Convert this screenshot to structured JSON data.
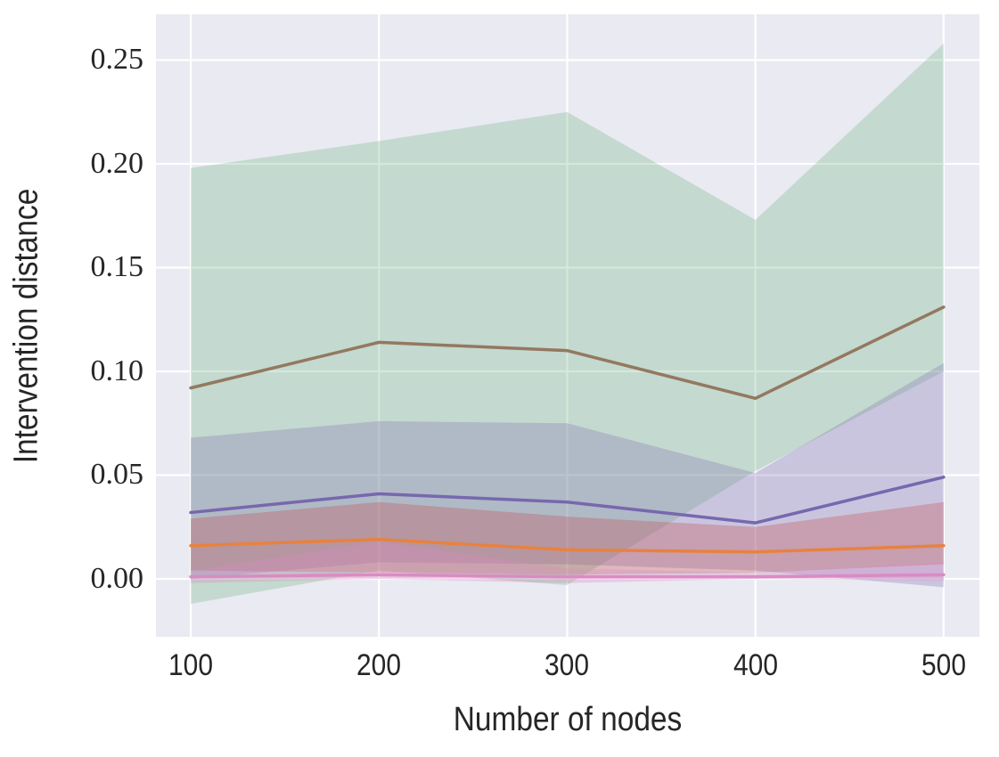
{
  "chart_data": {
    "type": "line",
    "title": "",
    "xlabel": "Number of nodes",
    "ylabel": "Intervention distance",
    "x": [
      100,
      200,
      300,
      400,
      500
    ],
    "xticks": [
      "100",
      "200",
      "300",
      "400",
      "500"
    ],
    "yticks": [
      "0.00",
      "0.05",
      "0.10",
      "0.15",
      "0.20",
      "0.25"
    ],
    "xlim": [
      81.5,
      519.0
    ],
    "ylim": [
      -0.0279,
      0.2721
    ],
    "grid": true,
    "legend": "none",
    "plot_background": "#eaeaf2",
    "gridline_color": "#ffffff",
    "text_color": "#262626",
    "series": [
      {
        "name": "brown-series",
        "line_color": "#937860",
        "band_color": "#55A868",
        "band_alpha": 0.25,
        "values": [
          0.092,
          0.114,
          0.11,
          0.087,
          0.131
        ],
        "band_low": [
          -0.012,
          0.004,
          -0.003,
          0.052,
          0.1
        ],
        "band_high": [
          0.198,
          0.211,
          0.225,
          0.173,
          0.258
        ]
      },
      {
        "name": "purple-series",
        "line_color": "#7668ae",
        "band_color": "#8172B3",
        "band_alpha": 0.3,
        "values": [
          0.032,
          0.041,
          0.037,
          0.027,
          0.049
        ],
        "band_low": [
          0.0,
          0.008,
          0.007,
          0.004,
          -0.004
        ],
        "band_high": [
          0.068,
          0.076,
          0.075,
          0.051,
          0.104
        ]
      },
      {
        "name": "orange-series",
        "line_color": "#e8823e",
        "band_color": "#C44E52",
        "band_alpha": 0.32,
        "values": [
          0.016,
          0.019,
          0.014,
          0.013,
          0.016
        ],
        "band_low": [
          0.004,
          0.003,
          0.002,
          0.003,
          0.007
        ],
        "band_high": [
          0.029,
          0.037,
          0.03,
          0.025,
          0.037
        ]
      },
      {
        "name": "pink-series",
        "line_color": "#DA8BC3",
        "band_color": "#DA8BC3",
        "band_alpha": 0.35,
        "values": [
          0.001,
          0.002,
          0.001,
          0.001,
          0.002
        ],
        "band_low": [
          -0.002,
          0.0,
          -0.002,
          0.0,
          -0.001
        ],
        "band_high": [
          0.004,
          0.018,
          0.005,
          0.003,
          0.008
        ]
      }
    ]
  }
}
